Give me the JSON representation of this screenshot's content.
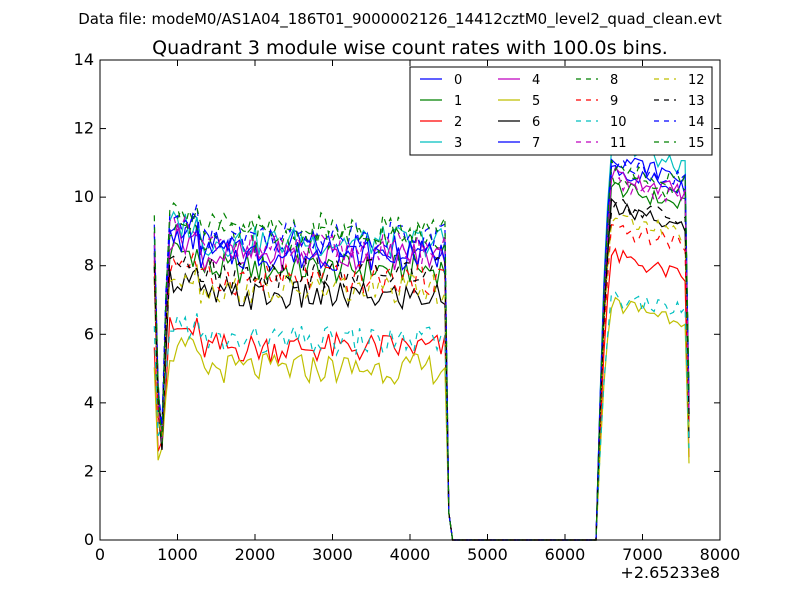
{
  "chart_data": {
    "type": "line",
    "suptitle": "Data file: modeM0/AS1A04_186T01_9000002126_14412cztM0_level2_quad_clean.evt",
    "title": "Quadrant 3 module wise count rates with 100.0s bins.",
    "xlabel": "",
    "ylabel": "",
    "x_offset_text": "+2.65233e8",
    "xlim": [
      0,
      8000
    ],
    "ylim": [
      0,
      14
    ],
    "x_ticks": [
      0,
      1000,
      2000,
      3000,
      4000,
      5000,
      6000,
      7000,
      8000
    ],
    "y_ticks": [
      0,
      2,
      4,
      6,
      8,
      10,
      12,
      14
    ],
    "grid": false,
    "legend_position": "top-right",
    "series": [
      {
        "name": "0",
        "color": "#0000ff",
        "dash": "solid"
      },
      {
        "name": "1",
        "color": "#008000",
        "dash": "solid"
      },
      {
        "name": "2",
        "color": "#ff0000",
        "dash": "solid"
      },
      {
        "name": "3",
        "color": "#00bfbf",
        "dash": "solid"
      },
      {
        "name": "4",
        "color": "#bf00bf",
        "dash": "solid"
      },
      {
        "name": "5",
        "color": "#bfbf00",
        "dash": "solid"
      },
      {
        "name": "6",
        "color": "#000000",
        "dash": "solid"
      },
      {
        "name": "7",
        "color": "#0000ff",
        "dash": "solid"
      },
      {
        "name": "8",
        "color": "#008000",
        "dash": "dashed"
      },
      {
        "name": "9",
        "color": "#ff0000",
        "dash": "dashed"
      },
      {
        "name": "10",
        "color": "#00bfbf",
        "dash": "dashed"
      },
      {
        "name": "11",
        "color": "#bf00bf",
        "dash": "dashed"
      },
      {
        "name": "12",
        "color": "#bfbf00",
        "dash": "dashed"
      },
      {
        "name": "13",
        "color": "#000000",
        "dash": "dashed"
      },
      {
        "name": "14",
        "color": "#0000ff",
        "dash": "dashed"
      },
      {
        "name": "15",
        "color": "#008000",
        "dash": "dashed"
      }
    ],
    "x_segment1": [
      700,
      750,
      800,
      850,
      900,
      950,
      1000,
      1050,
      1100,
      1150,
      1200,
      1250,
      1300,
      1350,
      1400,
      1450,
      1500,
      1550,
      1600,
      1650,
      1700,
      1750,
      1800,
      1850,
      1900,
      1950,
      2000,
      2050,
      2100,
      2150,
      2200,
      2250,
      2300,
      2350,
      2400,
      2450,
      2500,
      2550,
      2600,
      2650,
      2700,
      2750,
      2800,
      2850,
      2900,
      2950,
      3000,
      3050,
      3100,
      3150,
      3200,
      3250,
      3300,
      3350,
      3400,
      3450,
      3500,
      3550,
      3600,
      3650,
      3700,
      3750,
      3800,
      3850,
      3900,
      3950,
      4000,
      4050,
      4100,
      4150,
      4200,
      4250,
      4300,
      4350,
      4400,
      4450,
      4500,
      4550,
      4600,
      4650
    ],
    "x_segment2": [
      6400,
      6450,
      6500,
      6550,
      6600,
      6650,
      6700,
      6750,
      6800,
      6850,
      6900,
      6950,
      7000,
      7050,
      7100,
      7150,
      7200,
      7250,
      7300,
      7350,
      7400,
      7450,
      7500,
      7550,
      7600
    ],
    "series_base_levels": [
      8.6,
      7.9,
      5.6,
      8.7,
      8.3,
      5.0,
      7.1,
      8.3,
      8.8,
      7.6,
      5.8,
      8.5,
      7.3,
      7.8,
      8.9,
      9.1
    ],
    "series_peak_levels": [
      10.8,
      10.3,
      8.3,
      11.5,
      10.7,
      6.9,
      9.7,
      11.2,
      10.5,
      9.0,
      7.0,
      10.4,
      9.4,
      9.8,
      11.0,
      10.9
    ]
  }
}
